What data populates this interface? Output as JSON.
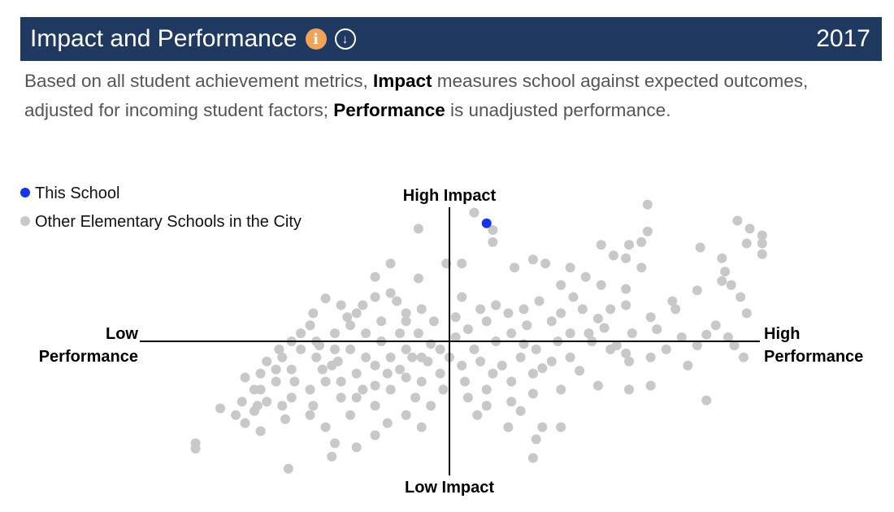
{
  "header": {
    "title": "Impact and Performance",
    "info_icon": "info-icon",
    "download_icon": "download-icon",
    "year": "2017",
    "bg": "#1f3961",
    "info_color": "#f0a45a"
  },
  "description": {
    "p1": "Based on all student achievement metrics, ",
    "b1": "Impact",
    "p2": " measures school against expected outcomes, adjusted for incoming student factors; ",
    "b2": "Performance",
    "p3": " is unadjusted performance."
  },
  "chart_data": {
    "type": "scatter",
    "xlim": [
      -100,
      100
    ],
    "ylim": [
      -100,
      100
    ],
    "grid": false,
    "legend": "top-left",
    "labels": {
      "top": "High Impact",
      "bottom": "Low Impact",
      "left_1": "Low",
      "left_2": "Performance",
      "right_1": "High",
      "right_2": "Performance"
    },
    "series": [
      {
        "name": "This School",
        "color": "#1434ec",
        "points": [
          [
            12,
            88
          ]
        ]
      },
      {
        "name": "Other Elementary Schools in the City",
        "color": "#c8c8c8",
        "points": [
          [
            8,
            96
          ],
          [
            14,
            83
          ],
          [
            14,
            74
          ],
          [
            -10,
            84
          ],
          [
            93,
            90
          ],
          [
            97,
            84
          ],
          [
            101,
            79
          ],
          [
            101,
            73
          ],
          [
            101,
            65
          ],
          [
            96,
            73
          ],
          [
            64,
            102
          ],
          [
            64,
            82
          ],
          [
            62,
            74
          ],
          [
            58,
            72
          ],
          [
            49,
            72
          ],
          [
            53,
            64
          ],
          [
            57,
            62
          ],
          [
            62,
            55
          ],
          [
            81,
            70
          ],
          [
            88,
            62
          ],
          [
            89,
            52
          ],
          [
            91,
            42
          ],
          [
            94,
            33
          ],
          [
            96,
            21
          ],
          [
            80,
            38
          ],
          [
            88,
            45
          ],
          [
            27,
            61
          ],
          [
            31,
            58
          ],
          [
            21,
            55
          ],
          [
            39,
            55
          ],
          [
            44,
            48
          ],
          [
            36,
            42
          ],
          [
            49,
            42
          ],
          [
            57,
            39
          ],
          [
            57,
            27
          ],
          [
            65,
            18
          ],
          [
            73,
            24
          ],
          [
            4,
            58
          ],
          [
            -1,
            58
          ],
          [
            -10,
            47
          ],
          [
            -19,
            58
          ],
          [
            -24,
            48
          ],
          [
            -40,
            32
          ],
          [
            -35,
            27
          ],
          [
            -44,
            21
          ],
          [
            -30,
            21
          ],
          [
            -24,
            33
          ],
          [
            -17,
            30
          ],
          [
            -9,
            24
          ],
          [
            -5,
            15
          ],
          [
            4,
            33
          ],
          [
            10,
            24
          ],
          [
            15,
            27
          ],
          [
            19,
            21
          ],
          [
            24,
            24
          ],
          [
            29,
            30
          ],
          [
            36,
            21
          ],
          [
            43,
            24
          ],
          [
            48,
            17
          ],
          [
            52,
            24
          ],
          [
            39,
            6
          ],
          [
            46,
            0
          ],
          [
            54,
            -3
          ],
          [
            59,
            6
          ],
          [
            67,
            9
          ],
          [
            75,
            3
          ],
          [
            83,
            5
          ],
          [
            90,
            3
          ],
          [
            92,
            -3
          ],
          [
            95,
            -12
          ],
          [
            80,
            -3
          ],
          [
            77,
            -18
          ],
          [
            65,
            -12
          ],
          [
            58,
            -15
          ],
          [
            48,
            -33
          ],
          [
            58,
            -36
          ],
          [
            65,
            -33
          ],
          [
            83,
            -44
          ],
          [
            36,
            -36
          ],
          [
            27,
            -39
          ],
          [
            20,
            -45
          ],
          [
            23,
            -52
          ],
          [
            36,
            -64
          ],
          [
            30,
            -64
          ],
          [
            28,
            -73
          ],
          [
            19,
            -64
          ],
          [
            27,
            -87
          ],
          [
            12,
            -48
          ],
          [
            14,
            -24
          ],
          [
            17,
            -18
          ],
          [
            23,
            -12
          ],
          [
            28,
            -6
          ],
          [
            8,
            -6
          ],
          [
            4,
            -18
          ],
          [
            10,
            -15
          ],
          [
            15,
            0
          ],
          [
            20,
            6
          ],
          [
            6,
            9
          ],
          [
            2,
            3
          ],
          [
            -3,
            -6
          ],
          [
            -7,
            -15
          ],
          [
            -3,
            -24
          ],
          [
            -9,
            -30
          ],
          [
            -2,
            -36
          ],
          [
            -11,
            -42
          ],
          [
            -6,
            -48
          ],
          [
            -14,
            -55
          ],
          [
            -9,
            -64
          ],
          [
            -20,
            -61
          ],
          [
            -24,
            -70
          ],
          [
            -32,
            -55
          ],
          [
            -30,
            -79
          ],
          [
            -37,
            -76
          ],
          [
            -38,
            -86
          ],
          [
            -52,
            -95
          ],
          [
            -40,
            -64
          ],
          [
            -45,
            -55
          ],
          [
            -53,
            -58
          ],
          [
            -61,
            -67
          ],
          [
            -66,
            -61
          ],
          [
            -74,
            -50
          ],
          [
            -82,
            -76
          ],
          [
            -67,
            -45
          ],
          [
            -63,
            -36
          ],
          [
            -66,
            -27
          ],
          [
            -61,
            -24
          ],
          [
            -56,
            -30
          ],
          [
            -51,
            -21
          ],
          [
            -54,
            -12
          ],
          [
            -48,
            -6
          ],
          [
            -43,
            -12
          ],
          [
            -38,
            -18
          ],
          [
            -35,
            -30
          ],
          [
            -30,
            -24
          ],
          [
            -24,
            -18
          ],
          [
            -19,
            -12
          ],
          [
            -14,
            -6
          ],
          [
            -22,
            0
          ],
          [
            -27,
            6
          ],
          [
            -32,
            12
          ],
          [
            -37,
            6
          ],
          [
            -43,
            0
          ],
          [
            -48,
            6
          ],
          [
            -45,
            12
          ],
          [
            -41,
            -21
          ],
          [
            -40,
            -30
          ],
          [
            -45,
            -36
          ],
          [
            -51,
            -42
          ],
          [
            -59,
            -45
          ],
          [
            -30,
            -42
          ],
          [
            -24,
            -48
          ],
          [
            -19,
            -36
          ],
          [
            -14,
            -27
          ],
          [
            -16,
            -21
          ],
          [
            -10,
            6
          ],
          [
            -14,
            15
          ],
          [
            -22,
            15
          ],
          [
            -28,
            27
          ],
          [
            -33,
            18
          ],
          [
            -56,
            -21
          ],
          [
            -59,
            -15
          ],
          [
            -61,
            -36
          ],
          [
            -69,
            -55
          ],
          [
            -62,
            -48
          ],
          [
            -54,
            -48
          ],
          [
            -44,
            -48
          ],
          [
            -35,
            -42
          ],
          [
            -24,
            -33
          ],
          [
            2,
            18
          ],
          [
            12,
            15
          ],
          [
            25,
            12
          ],
          [
            33,
            15
          ],
          [
            40,
            33
          ],
          [
            45,
            6
          ],
          [
            52,
            -6
          ],
          [
            57,
            -9
          ],
          [
            39,
            -12
          ],
          [
            33,
            -15
          ],
          [
            27,
            -24
          ],
          [
            20,
            -30
          ],
          [
            12,
            -36
          ],
          [
            6,
            -42
          ],
          [
            -9,
            -12
          ],
          [
            -16,
            6
          ],
          [
            -32,
            -6
          ],
          [
            -37,
            -6
          ],
          [
            -27,
            -12
          ],
          [
            -51,
            0
          ],
          [
            -55,
            -6
          ],
          [
            -19,
            36
          ],
          [
            -14,
            21
          ],
          [
            -82,
            -80
          ],
          [
            -63,
            -52
          ],
          [
            -50,
            -30
          ],
          [
            -42,
            -3
          ],
          [
            -36,
            -15
          ],
          [
            -28,
            -36
          ],
          [
            -20,
            -24
          ],
          [
            -12,
            -12
          ],
          [
            -6,
            -2
          ],
          [
            0,
            -12
          ],
          [
            5,
            -30
          ],
          [
            9,
            -55
          ],
          [
            30,
            -20
          ],
          [
            42,
            -22
          ],
          [
            50,
            10
          ],
          [
            70,
            -6
          ],
          [
            86,
            12
          ],
          [
            72,
            30
          ],
          [
            35,
            0
          ],
          [
            24,
            -2
          ]
        ]
      }
    ]
  }
}
